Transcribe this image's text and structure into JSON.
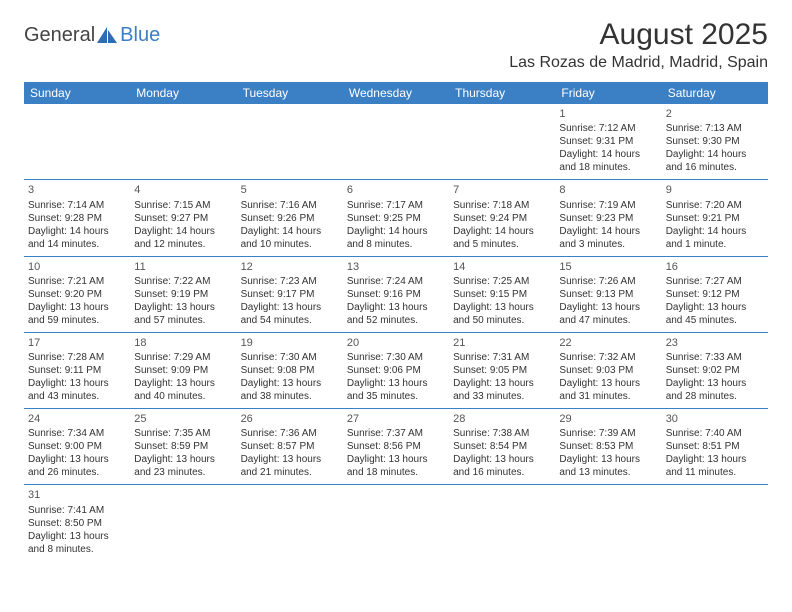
{
  "brand": {
    "general": "General",
    "blue": "Blue"
  },
  "header": {
    "month_title": "August 2025",
    "location": "Las Rozas de Madrid, Madrid, Spain"
  },
  "colors": {
    "header_bg": "#3b7fc4",
    "header_text": "#ffffff",
    "cell_border": "#3b7fc4",
    "text": "#333333",
    "logo_general": "#444444",
    "logo_blue": "#3b7fc4"
  },
  "weekdays": [
    "Sunday",
    "Monday",
    "Tuesday",
    "Wednesday",
    "Thursday",
    "Friday",
    "Saturday"
  ],
  "weeks": [
    [
      null,
      null,
      null,
      null,
      null,
      {
        "day": "1",
        "sunrise": "Sunrise: 7:12 AM",
        "sunset": "Sunset: 9:31 PM",
        "daylight": "Daylight: 14 hours and 18 minutes."
      },
      {
        "day": "2",
        "sunrise": "Sunrise: 7:13 AM",
        "sunset": "Sunset: 9:30 PM",
        "daylight": "Daylight: 14 hours and 16 minutes."
      }
    ],
    [
      {
        "day": "3",
        "sunrise": "Sunrise: 7:14 AM",
        "sunset": "Sunset: 9:28 PM",
        "daylight": "Daylight: 14 hours and 14 minutes."
      },
      {
        "day": "4",
        "sunrise": "Sunrise: 7:15 AM",
        "sunset": "Sunset: 9:27 PM",
        "daylight": "Daylight: 14 hours and 12 minutes."
      },
      {
        "day": "5",
        "sunrise": "Sunrise: 7:16 AM",
        "sunset": "Sunset: 9:26 PM",
        "daylight": "Daylight: 14 hours and 10 minutes."
      },
      {
        "day": "6",
        "sunrise": "Sunrise: 7:17 AM",
        "sunset": "Sunset: 9:25 PM",
        "daylight": "Daylight: 14 hours and 8 minutes."
      },
      {
        "day": "7",
        "sunrise": "Sunrise: 7:18 AM",
        "sunset": "Sunset: 9:24 PM",
        "daylight": "Daylight: 14 hours and 5 minutes."
      },
      {
        "day": "8",
        "sunrise": "Sunrise: 7:19 AM",
        "sunset": "Sunset: 9:23 PM",
        "daylight": "Daylight: 14 hours and 3 minutes."
      },
      {
        "day": "9",
        "sunrise": "Sunrise: 7:20 AM",
        "sunset": "Sunset: 9:21 PM",
        "daylight": "Daylight: 14 hours and 1 minute."
      }
    ],
    [
      {
        "day": "10",
        "sunrise": "Sunrise: 7:21 AM",
        "sunset": "Sunset: 9:20 PM",
        "daylight": "Daylight: 13 hours and 59 minutes."
      },
      {
        "day": "11",
        "sunrise": "Sunrise: 7:22 AM",
        "sunset": "Sunset: 9:19 PM",
        "daylight": "Daylight: 13 hours and 57 minutes."
      },
      {
        "day": "12",
        "sunrise": "Sunrise: 7:23 AM",
        "sunset": "Sunset: 9:17 PM",
        "daylight": "Daylight: 13 hours and 54 minutes."
      },
      {
        "day": "13",
        "sunrise": "Sunrise: 7:24 AM",
        "sunset": "Sunset: 9:16 PM",
        "daylight": "Daylight: 13 hours and 52 minutes."
      },
      {
        "day": "14",
        "sunrise": "Sunrise: 7:25 AM",
        "sunset": "Sunset: 9:15 PM",
        "daylight": "Daylight: 13 hours and 50 minutes."
      },
      {
        "day": "15",
        "sunrise": "Sunrise: 7:26 AM",
        "sunset": "Sunset: 9:13 PM",
        "daylight": "Daylight: 13 hours and 47 minutes."
      },
      {
        "day": "16",
        "sunrise": "Sunrise: 7:27 AM",
        "sunset": "Sunset: 9:12 PM",
        "daylight": "Daylight: 13 hours and 45 minutes."
      }
    ],
    [
      {
        "day": "17",
        "sunrise": "Sunrise: 7:28 AM",
        "sunset": "Sunset: 9:11 PM",
        "daylight": "Daylight: 13 hours and 43 minutes."
      },
      {
        "day": "18",
        "sunrise": "Sunrise: 7:29 AM",
        "sunset": "Sunset: 9:09 PM",
        "daylight": "Daylight: 13 hours and 40 minutes."
      },
      {
        "day": "19",
        "sunrise": "Sunrise: 7:30 AM",
        "sunset": "Sunset: 9:08 PM",
        "daylight": "Daylight: 13 hours and 38 minutes."
      },
      {
        "day": "20",
        "sunrise": "Sunrise: 7:30 AM",
        "sunset": "Sunset: 9:06 PM",
        "daylight": "Daylight: 13 hours and 35 minutes."
      },
      {
        "day": "21",
        "sunrise": "Sunrise: 7:31 AM",
        "sunset": "Sunset: 9:05 PM",
        "daylight": "Daylight: 13 hours and 33 minutes."
      },
      {
        "day": "22",
        "sunrise": "Sunrise: 7:32 AM",
        "sunset": "Sunset: 9:03 PM",
        "daylight": "Daylight: 13 hours and 31 minutes."
      },
      {
        "day": "23",
        "sunrise": "Sunrise: 7:33 AM",
        "sunset": "Sunset: 9:02 PM",
        "daylight": "Daylight: 13 hours and 28 minutes."
      }
    ],
    [
      {
        "day": "24",
        "sunrise": "Sunrise: 7:34 AM",
        "sunset": "Sunset: 9:00 PM",
        "daylight": "Daylight: 13 hours and 26 minutes."
      },
      {
        "day": "25",
        "sunrise": "Sunrise: 7:35 AM",
        "sunset": "Sunset: 8:59 PM",
        "daylight": "Daylight: 13 hours and 23 minutes."
      },
      {
        "day": "26",
        "sunrise": "Sunrise: 7:36 AM",
        "sunset": "Sunset: 8:57 PM",
        "daylight": "Daylight: 13 hours and 21 minutes."
      },
      {
        "day": "27",
        "sunrise": "Sunrise: 7:37 AM",
        "sunset": "Sunset: 8:56 PM",
        "daylight": "Daylight: 13 hours and 18 minutes."
      },
      {
        "day": "28",
        "sunrise": "Sunrise: 7:38 AM",
        "sunset": "Sunset: 8:54 PM",
        "daylight": "Daylight: 13 hours and 16 minutes."
      },
      {
        "day": "29",
        "sunrise": "Sunrise: 7:39 AM",
        "sunset": "Sunset: 8:53 PM",
        "daylight": "Daylight: 13 hours and 13 minutes."
      },
      {
        "day": "30",
        "sunrise": "Sunrise: 7:40 AM",
        "sunset": "Sunset: 8:51 PM",
        "daylight": "Daylight: 13 hours and 11 minutes."
      }
    ],
    [
      {
        "day": "31",
        "sunrise": "Sunrise: 7:41 AM",
        "sunset": "Sunset: 8:50 PM",
        "daylight": "Daylight: 13 hours and 8 minutes."
      },
      null,
      null,
      null,
      null,
      null,
      null
    ]
  ]
}
